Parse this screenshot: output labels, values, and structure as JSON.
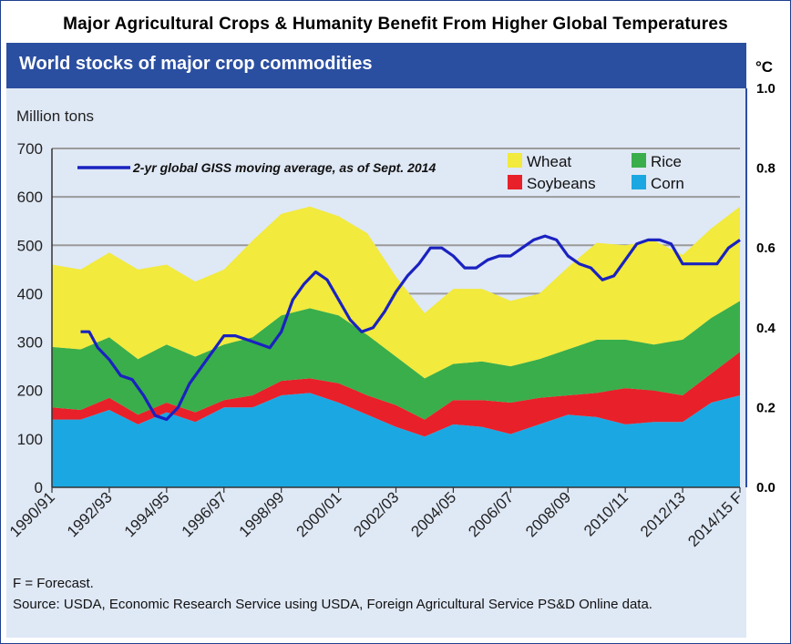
{
  "page": {
    "title": "Major Agricultural Crops & Humanity Benefit From Higher Global Temperatures",
    "banner": "World stocks of major crop commodities",
    "footnote": "F = Forecast.",
    "source": "Source: USDA, Economic Research Service using USDA, Foreign Agricultural Service PS&D Online data."
  },
  "colors": {
    "wheat": "#f2ea3c",
    "rice": "#3aae4a",
    "soybeans": "#e8202a",
    "corn": "#1ba8e2",
    "temperature": "#1a22c0",
    "banner": "#2b4fa0",
    "plot_bg": "#dfe8f5"
  },
  "chart_data": {
    "type": "area",
    "stacked": true,
    "ylabel": "Million tons",
    "ylim": [
      0,
      700
    ],
    "yticks": [
      0,
      100,
      200,
      300,
      400,
      500,
      600,
      700
    ],
    "y2label": "°C",
    "y2lim": [
      0.0,
      1.0
    ],
    "y2ticks": [
      "0.0",
      "0.2",
      "0.4",
      "0.6",
      "0.8",
      "1.0"
    ],
    "tick_labels": [
      "1990/91",
      "1992/93",
      "1994/95",
      "1996/97",
      "1998/99",
      "2000/01",
      "2002/03",
      "2004/05",
      "2006/07",
      "2008/09",
      "2010/11",
      "2012/13",
      "2014/15 F"
    ],
    "categories": [
      "1990/91",
      "1991/92",
      "1992/93",
      "1993/94",
      "1994/95",
      "1995/96",
      "1996/97",
      "1997/98",
      "1998/99",
      "1999/00",
      "2000/01",
      "2001/02",
      "2002/03",
      "2003/04",
      "2004/05",
      "2005/06",
      "2006/07",
      "2007/08",
      "2008/09",
      "2009/10",
      "2010/11",
      "2011/12",
      "2012/13",
      "2013/14",
      "2014/15 F"
    ],
    "series": [
      {
        "name": "Corn",
        "values": [
          140,
          140,
          160,
          130,
          155,
          135,
          165,
          165,
          190,
          195,
          175,
          150,
          125,
          105,
          130,
          125,
          110,
          130,
          150,
          145,
          130,
          135,
          135,
          175,
          190
        ]
      },
      {
        "name": "Soybeans",
        "values": [
          25,
          20,
          25,
          20,
          20,
          20,
          15,
          25,
          30,
          30,
          40,
          40,
          45,
          35,
          50,
          55,
          65,
          55,
          40,
          50,
          75,
          65,
          55,
          60,
          90
        ]
      },
      {
        "name": "Rice",
        "values": [
          125,
          125,
          125,
          115,
          120,
          115,
          115,
          120,
          135,
          145,
          140,
          125,
          100,
          85,
          75,
          80,
          75,
          80,
          95,
          110,
          100,
          95,
          115,
          115,
          105
        ]
      },
      {
        "name": "Wheat",
        "values": [
          170,
          165,
          175,
          185,
          165,
          155,
          155,
          200,
          210,
          210,
          205,
          210,
          165,
          135,
          155,
          150,
          135,
          135,
          170,
          200,
          195,
          215,
          175,
          185,
          195
        ]
      }
    ],
    "legend": [
      "Wheat",
      "Rice",
      "Soybeans",
      "Corn"
    ],
    "legend_placement": "top-right",
    "temperature": {
      "name": "2-yr global GISS moving average, as of Sept. 2014",
      "x_year_index": [
        1,
        1.3,
        1.6,
        2,
        2.4,
        2.8,
        3.2,
        3.6,
        4,
        4.4,
        4.8,
        5.2,
        5.6,
        6,
        6.4,
        6.8,
        7.2,
        7.6,
        8,
        8.4,
        8.8,
        9.2,
        9.6,
        10,
        10.4,
        10.8,
        11.2,
        11.6,
        12,
        12.4,
        12.8,
        13.2,
        13.6,
        14,
        14.4,
        14.8,
        15.2,
        15.6,
        16,
        16.4,
        16.8,
        17.2,
        17.6,
        18,
        18.4,
        18.8,
        19.2,
        19.6,
        20,
        20.4,
        20.8,
        21.2,
        21.6,
        22,
        22.4,
        22.8,
        23.2,
        23.6,
        24
      ],
      "values": [
        0.39,
        0.39,
        0.35,
        0.32,
        0.28,
        0.27,
        0.23,
        0.18,
        0.17,
        0.2,
        0.26,
        0.3,
        0.34,
        0.38,
        0.38,
        0.37,
        0.36,
        0.35,
        0.39,
        0.47,
        0.51,
        0.54,
        0.52,
        0.47,
        0.42,
        0.39,
        0.4,
        0.44,
        0.49,
        0.53,
        0.56,
        0.6,
        0.6,
        0.58,
        0.55,
        0.55,
        0.57,
        0.58,
        0.58,
        0.6,
        0.62,
        0.63,
        0.62,
        0.58,
        0.56,
        0.55,
        0.52,
        0.53,
        0.57,
        0.61,
        0.62,
        0.62,
        0.61,
        0.56,
        0.56,
        0.56,
        0.56,
        0.6,
        0.62
      ],
      "y_axis": "right"
    }
  }
}
